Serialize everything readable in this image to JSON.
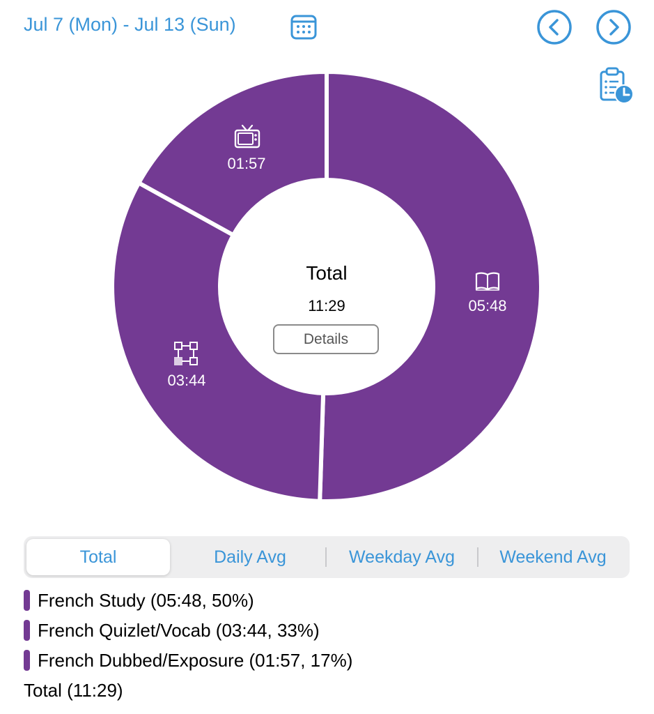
{
  "header": {
    "date_range": "Jul 7 (Mon) - Jul 13 (Sun)"
  },
  "icons": {
    "calendar": "calendar-icon",
    "prev": "chevron-left-icon",
    "next": "chevron-right-icon",
    "report": "clipboard-clock-icon"
  },
  "colors": {
    "accent": "#3a95d8",
    "segment": "#733a93"
  },
  "chart_data": {
    "type": "pie",
    "style": "donut",
    "center_title": "Total",
    "center_value": "11:29",
    "slices": [
      {
        "label": "French Study",
        "value": "05:48",
        "minutes": 348,
        "percent": 50,
        "icon": "open-book-icon"
      },
      {
        "label": "French Quizlet/Vocab",
        "value": "03:44",
        "minutes": 224,
        "percent": 33,
        "icon": "flowchart-icon"
      },
      {
        "label": "French Dubbed/Exposure",
        "value": "01:57",
        "minutes": 117,
        "percent": 17,
        "icon": "tv-icon"
      }
    ]
  },
  "details_button": "Details",
  "tabs": [
    "Total",
    "Daily Avg",
    "Weekday Avg",
    "Weekend Avg"
  ],
  "legend": [
    {
      "text": "French Study (05:48, 50%)"
    },
    {
      "text": "French Quizlet/Vocab (03:44, 33%)"
    },
    {
      "text": "French Dubbed/Exposure (01:57, 17%)"
    }
  ],
  "total_line": "Total (11:29)"
}
